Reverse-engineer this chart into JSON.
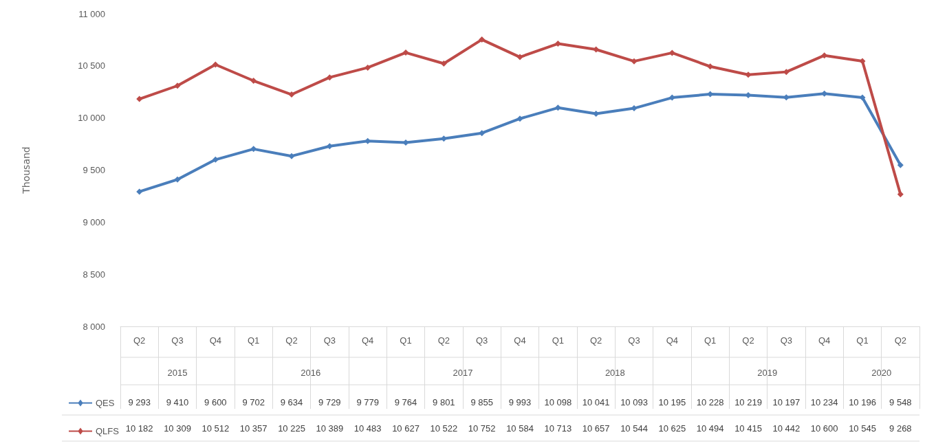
{
  "chart_data": {
    "type": "line",
    "ylabel": "Thousand",
    "categories": [
      "Q2",
      "Q3",
      "Q4",
      "Q1",
      "Q2",
      "Q3",
      "Q4",
      "Q1",
      "Q2",
      "Q3",
      "Q4",
      "Q1",
      "Q2",
      "Q3",
      "Q4",
      "Q1",
      "Q2",
      "Q3",
      "Q4",
      "Q1",
      "Q2"
    ],
    "annotations": [
      "2015",
      "2016",
      "2017",
      "2018",
      "2019",
      "2020"
    ],
    "series": [
      {
        "name": "QES",
        "color": "#4a7ebb",
        "values": [
          9293,
          9410,
          9600,
          9702,
          9634,
          9729,
          9779,
          9764,
          9801,
          9855,
          9993,
          10098,
          10041,
          10093,
          10195,
          10228,
          10219,
          10197,
          10234,
          10196,
          9548
        ],
        "value_labels": [
          "9 293",
          "9 410",
          "9 600",
          "9 702",
          "9 634",
          "9 729",
          "9 779",
          "9 764",
          "9 801",
          "9 855",
          "9 993",
          "10 098",
          "10 041",
          "10 093",
          "10 195",
          "10 228",
          "10 219",
          "10 197",
          "10 234",
          "10 196",
          "9 548"
        ]
      },
      {
        "name": "QLFS",
        "color": "#be4b48",
        "values": [
          10182,
          10309,
          10512,
          10357,
          10225,
          10389,
          10483,
          10627,
          10522,
          10752,
          10584,
          10713,
          10657,
          10544,
          10625,
          10494,
          10415,
          10442,
          10600,
          10545,
          9268
        ],
        "value_labels": [
          "10 182",
          "10 309",
          "10 512",
          "10 357",
          "10 225",
          "10 389",
          "10 483",
          "10 627",
          "10 522",
          "10 752",
          "10 584",
          "10 713",
          "10 657",
          "10 544",
          "10 625",
          "10 494",
          "10 415",
          "10 442",
          "10 600",
          "10 545",
          "9 268"
        ]
      }
    ],
    "ylim": [
      8000,
      11000
    ],
    "yticks": [
      {
        "value": 8000,
        "label": "8 000"
      },
      {
        "value": 8500,
        "label": "8 500"
      },
      {
        "value": 9000,
        "label": "9 000"
      },
      {
        "value": 9500,
        "label": "9 500"
      },
      {
        "value": 10000,
        "label": "10 000"
      },
      {
        "value": 10500,
        "label": "10 500"
      },
      {
        "value": 11000,
        "label": "11 000"
      }
    ],
    "grid": false,
    "legend": "bottom left",
    "marker": "diamond",
    "line_style": "solid"
  }
}
